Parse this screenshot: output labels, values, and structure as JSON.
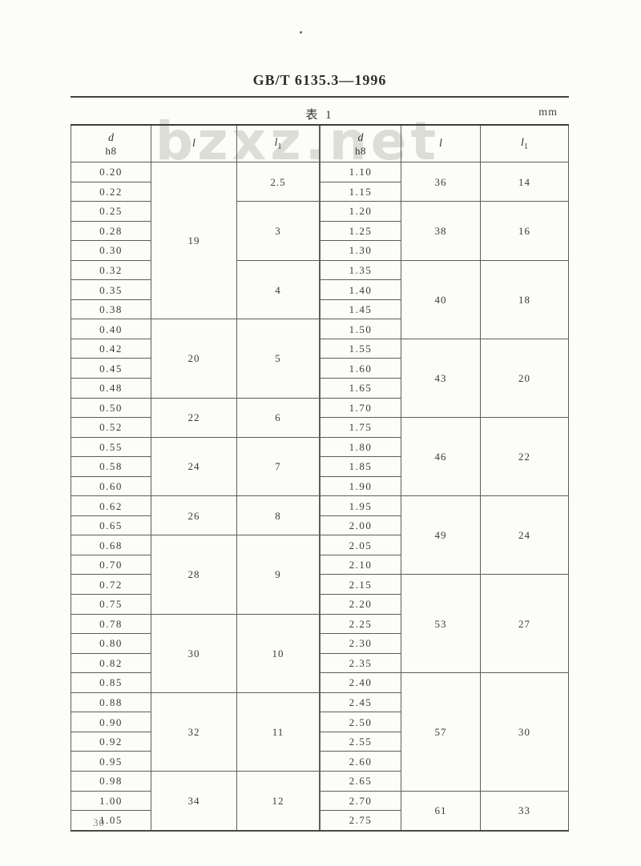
{
  "page": {
    "doc_number": "GB/T 6135.3—1996",
    "table_caption": "表 1",
    "unit_label": "mm",
    "watermark": "bzxz.net",
    "page_number": "30"
  },
  "table": {
    "header": {
      "d_symbol": "d",
      "d_tolerance": "h8",
      "l_symbol": "l",
      "l1_base": "l",
      "l1_sub": "1"
    },
    "halves": [
      {
        "groups": [
          {
            "l": "19",
            "subgroups": [
              {
                "l1": "2.5",
                "d": [
                  "0.20",
                  "0.22"
                ]
              },
              {
                "l1": "3",
                "d": [
                  "0.25",
                  "0.28",
                  "0.30"
                ]
              },
              {
                "l1": "4",
                "d": [
                  "0.32",
                  "0.35",
                  "0.38"
                ]
              }
            ]
          },
          {
            "l": "20",
            "subgroups": [
              {
                "l1": "5",
                "d": [
                  "0.40",
                  "0.42",
                  "0.45",
                  "0.48"
                ]
              }
            ]
          },
          {
            "l": "22",
            "subgroups": [
              {
                "l1": "6",
                "d": [
                  "0.50",
                  "0.52"
                ]
              }
            ]
          },
          {
            "l": "24",
            "subgroups": [
              {
                "l1": "7",
                "d": [
                  "0.55",
                  "0.58",
                  "0.60"
                ]
              }
            ]
          },
          {
            "l": "26",
            "subgroups": [
              {
                "l1": "8",
                "d": [
                  "0.62",
                  "0.65"
                ]
              }
            ]
          },
          {
            "l": "28",
            "subgroups": [
              {
                "l1": "9",
                "d": [
                  "0.68",
                  "0.70",
                  "0.72",
                  "0.75"
                ]
              }
            ]
          },
          {
            "l": "30",
            "subgroups": [
              {
                "l1": "10",
                "d": [
                  "0.78",
                  "0.80",
                  "0.82",
                  "0.85"
                ]
              }
            ]
          },
          {
            "l": "32",
            "subgroups": [
              {
                "l1": "11",
                "d": [
                  "0.88",
                  "0.90",
                  "0.92",
                  "0.95"
                ]
              }
            ]
          },
          {
            "l": "34",
            "subgroups": [
              {
                "l1": "12",
                "d": [
                  "0.98",
                  "1.00",
                  "1.05"
                ]
              }
            ]
          }
        ]
      },
      {
        "groups": [
          {
            "l": "36",
            "subgroups": [
              {
                "l1": "14",
                "d": [
                  "1.10",
                  "1.15"
                ]
              }
            ]
          },
          {
            "l": "38",
            "subgroups": [
              {
                "l1": "16",
                "d": [
                  "1.20",
                  "1.25",
                  "1.30"
                ]
              }
            ]
          },
          {
            "l": "40",
            "subgroups": [
              {
                "l1": "18",
                "d": [
                  "1.35",
                  "1.40",
                  "1.45",
                  "1.50"
                ]
              }
            ]
          },
          {
            "l": "43",
            "subgroups": [
              {
                "l1": "20",
                "d": [
                  "1.55",
                  "1.60",
                  "1.65",
                  "1.70"
                ]
              }
            ]
          },
          {
            "l": "46",
            "subgroups": [
              {
                "l1": "22",
                "d": [
                  "1.75",
                  "1.80",
                  "1.85",
                  "1.90"
                ]
              }
            ]
          },
          {
            "l": "49",
            "subgroups": [
              {
                "l1": "24",
                "d": [
                  "1.95",
                  "2.00",
                  "2.05",
                  "2.10"
                ]
              }
            ]
          },
          {
            "l": "53",
            "subgroups": [
              {
                "l1": "27",
                "d": [
                  "2.15",
                  "2.20",
                  "2.25",
                  "2.30",
                  "2.35"
                ]
              }
            ]
          },
          {
            "l": "57",
            "subgroups": [
              {
                "l1": "30",
                "d": [
                  "2.40",
                  "2.45",
                  "2.50",
                  "2.55",
                  "2.60",
                  "2.65"
                ]
              }
            ]
          },
          {
            "l": "61",
            "subgroups": [
              {
                "l1": "33",
                "d": [
                  "2.70",
                  "2.75"
                ]
              }
            ]
          }
        ]
      }
    ]
  }
}
